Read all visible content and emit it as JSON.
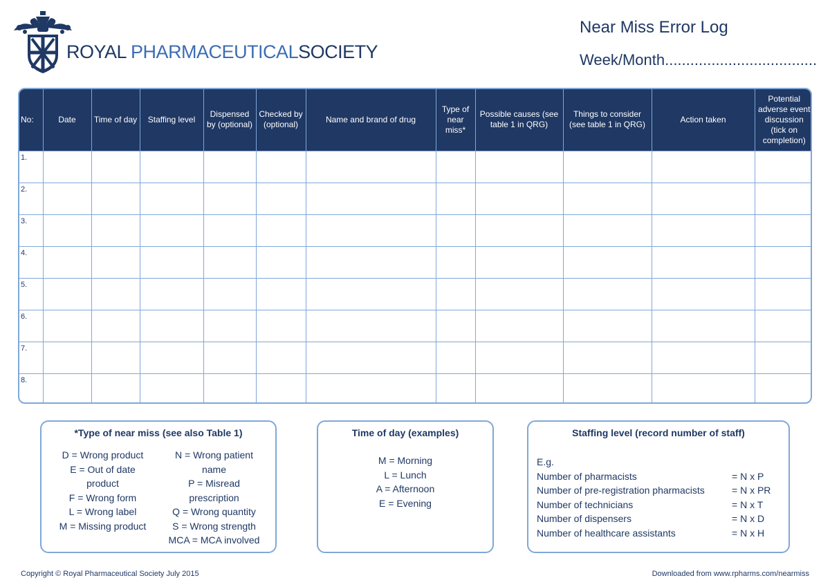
{
  "header": {
    "logo": {
      "part1": "ROYAL",
      "part2": "PHARMACEUTICAL",
      "part3": "SOCIETY"
    },
    "title": "Near Miss Error Log",
    "week_month": "Week/Month...................................."
  },
  "table": {
    "columns": [
      "No:",
      "Date",
      "Time of day",
      "Staffing level",
      "Dispensed by (optional)",
      "Checked by (optional)",
      "Name and brand of drug",
      "Type of near miss*",
      "Possible causes (see table 1 in QRG)",
      "Things to consider (see table 1 in QRG)",
      "Action taken",
      "Potential adverse event discussion (tick on completion)"
    ],
    "rows": [
      "1.",
      "2.",
      "3.",
      "4.",
      "5.",
      "6.",
      "7.",
      "8."
    ]
  },
  "near_miss_key": {
    "title": "*Type of near miss (see also Table 1)",
    "col1": [
      "D = Wrong product",
      "E = Out of date",
      "product",
      "F = Wrong form",
      "L = Wrong label",
      "M = Missing product"
    ],
    "col2": [
      "N = Wrong patient",
      "name",
      "P = Misread",
      "prescription",
      "Q = Wrong quantity",
      "S = Wrong strength",
      "MCA = MCA involved"
    ]
  },
  "time_of_day": {
    "title": "Time of day (examples)",
    "items": [
      "M = Morning",
      "L = Lunch",
      "A = Afternoon",
      "E = Evening"
    ]
  },
  "staffing": {
    "title": "Staffing level (record number of staff)",
    "eg": "E.g.",
    "rows": [
      {
        "label": "Number of pharmacists",
        "value": "= N x P"
      },
      {
        "label": "Number of pre-registration pharmacists",
        "value": "= N x PR"
      },
      {
        "label": "Number of technicians",
        "value": "= N x T"
      },
      {
        "label": "Number of dispensers",
        "value": "= N x D"
      },
      {
        "label": "Number of healthcare assistants",
        "value": "= N x H"
      }
    ]
  },
  "footer": {
    "copyright": "Copyright © Royal Pharmaceutical Society July 2015",
    "download": "Downloaded from www.rpharms.com/nearmiss"
  },
  "colors": {
    "navy": "#1f3864",
    "light_blue": "#7fa7d8",
    "logo_blue": "#3b6db3"
  }
}
